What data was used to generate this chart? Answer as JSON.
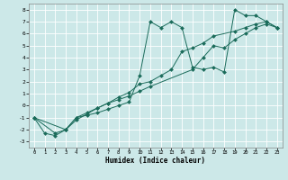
{
  "xlabel": "Humidex (Indice chaleur)",
  "ylabel": "",
  "bg_color": "#cce8e8",
  "grid_color": "#ffffff",
  "line_color": "#1a6b5a",
  "marker_color": "#1a6b5a",
  "xlim": [
    -0.5,
    23.5
  ],
  "ylim": [
    -3.5,
    8.5
  ],
  "xticks": [
    0,
    1,
    2,
    3,
    4,
    5,
    6,
    7,
    8,
    9,
    10,
    11,
    12,
    13,
    14,
    15,
    16,
    17,
    18,
    19,
    20,
    21,
    22,
    23
  ],
  "yticks": [
    -3,
    -2,
    -1,
    0,
    1,
    2,
    3,
    4,
    5,
    6,
    7,
    8
  ],
  "series": [
    {
      "x": [
        0,
        1,
        2,
        3,
        4,
        5,
        6,
        7,
        8,
        9,
        10,
        11,
        12,
        13,
        14,
        15,
        16,
        17,
        18,
        19,
        20,
        21,
        22,
        23
      ],
      "y": [
        -1.0,
        -2.3,
        -2.5,
        -2.0,
        -1.0,
        -0.8,
        -0.6,
        -0.3,
        0.0,
        0.3,
        2.5,
        7.0,
        6.5,
        7.0,
        6.5,
        3.2,
        3.0,
        3.2,
        2.8,
        8.0,
        7.5,
        7.5,
        7.0,
        6.5
      ]
    },
    {
      "x": [
        0,
        2,
        3,
        4,
        5,
        6,
        7,
        8,
        9,
        10,
        11,
        12,
        13,
        14,
        15,
        16,
        17,
        19,
        20,
        21,
        22,
        23
      ],
      "y": [
        -1.0,
        -2.3,
        -2.0,
        -1.2,
        -0.7,
        -0.2,
        0.2,
        0.7,
        1.1,
        1.8,
        2.0,
        2.5,
        3.0,
        4.5,
        4.8,
        5.2,
        5.8,
        6.2,
        6.5,
        6.8,
        7.0,
        6.5
      ]
    },
    {
      "x": [
        0,
        3,
        4,
        5,
        6,
        7,
        8,
        9,
        10,
        11,
        15,
        16,
        17,
        18,
        19,
        20,
        21,
        22,
        23
      ],
      "y": [
        -1.0,
        -2.0,
        -1.0,
        -0.6,
        -0.2,
        0.2,
        0.5,
        0.8,
        1.2,
        1.6,
        3.0,
        4.0,
        5.0,
        4.8,
        5.5,
        6.0,
        6.5,
        6.8,
        6.5
      ]
    }
  ]
}
